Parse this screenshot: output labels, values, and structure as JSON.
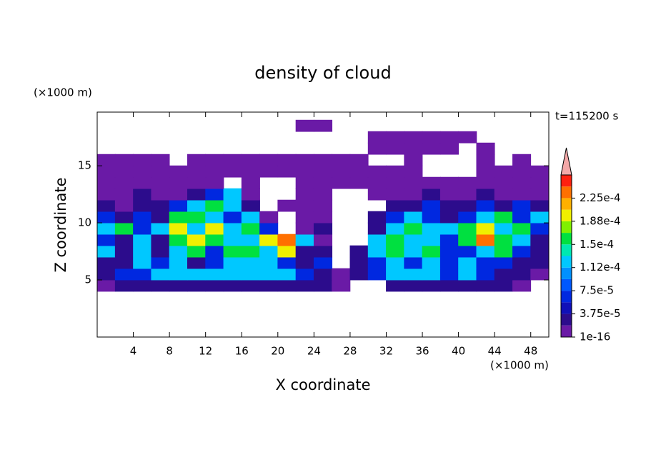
{
  "chart_data": {
    "type": "contour",
    "title": "density of cloud",
    "xlabel": "X coordinate",
    "ylabel": "Z coordinate",
    "x_unit": "(×1000 m)",
    "y_unit": "(×1000 m)",
    "annotation": "t=115200 s",
    "xlim": [
      0,
      50
    ],
    "ylim": [
      0,
      19.7
    ],
    "xticks": [
      4,
      8,
      12,
      16,
      20,
      24,
      28,
      32,
      36,
      40,
      44,
      48
    ],
    "yticks": [
      5,
      10,
      15
    ],
    "x": [
      1,
      3,
      5,
      7,
      9,
      11,
      13,
      15,
      17,
      19,
      21,
      23,
      25,
      27,
      29,
      31,
      33,
      35,
      37,
      39,
      41,
      43,
      45,
      47,
      49
    ],
    "z": [
      4.5,
      5.5,
      6.5,
      7.5,
      8.5,
      9.5,
      10.5,
      11.5,
      12.5,
      13.5,
      14.5,
      15.5,
      16.5,
      17.5,
      18.5
    ],
    "values": [
      [
        1e-05,
        3e-05,
        3e-05,
        3e-05,
        3e-05,
        3e-05,
        3e-05,
        3e-05,
        3e-05,
        3e-05,
        3e-05,
        3e-05,
        3e-05,
        1e-05,
        null,
        null,
        3e-05,
        3e-05,
        3e-05,
        3e-05,
        3e-05,
        3e-05,
        3e-05,
        1e-05,
        null
      ],
      [
        3e-05,
        6e-05,
        6e-05,
        0.00012,
        0.00012,
        0.00012,
        0.00012,
        0.00012,
        0.00012,
        0.00012,
        0.00012,
        6e-05,
        3e-05,
        1e-05,
        3e-05,
        6e-05,
        0.00012,
        0.00012,
        0.00012,
        6e-05,
        0.00012,
        6e-05,
        3e-05,
        3e-05,
        1e-05
      ],
      [
        3e-05,
        3e-05,
        0.00012,
        6e-05,
        0.00012,
        3e-05,
        6e-05,
        0.00012,
        0.00012,
        0.00012,
        6e-05,
        3e-05,
        6e-05,
        null,
        3e-05,
        6e-05,
        0.00012,
        6e-05,
        0.00012,
        6e-05,
        0.00012,
        6e-05,
        6e-05,
        3e-05,
        3e-05
      ],
      [
        0.00012,
        3e-05,
        0.00012,
        3e-05,
        0.00012,
        0.00016,
        6e-05,
        0.00016,
        0.00016,
        0.00012,
        0.000195,
        3e-05,
        3e-05,
        null,
        3e-05,
        0.00012,
        0.00016,
        0.00012,
        0.00016,
        6e-05,
        6e-05,
        0.00012,
        0.00016,
        6e-05,
        3e-05
      ],
      [
        6e-05,
        3e-05,
        0.00012,
        3e-05,
        0.00016,
        0.000195,
        0.00016,
        0.00012,
        0.00012,
        0.000195,
        0.00023,
        0.00012,
        1e-05,
        null,
        null,
        0.00012,
        0.00016,
        0.00012,
        0.00012,
        6e-05,
        0.00016,
        0.00023,
        0.00016,
        0.00012,
        3e-05
      ],
      [
        0.00012,
        0.00016,
        6e-05,
        0.00012,
        0.000195,
        0.00012,
        0.000195,
        0.00012,
        0.00016,
        6e-05,
        null,
        1e-05,
        3e-05,
        null,
        null,
        3e-05,
        0.00012,
        0.00016,
        0.00012,
        0.00012,
        0.00016,
        0.000195,
        0.00012,
        0.00016,
        6e-05
      ],
      [
        6e-05,
        3e-05,
        6e-05,
        3e-05,
        0.00016,
        0.00016,
        0.00012,
        6e-05,
        0.00012,
        1e-05,
        null,
        1e-05,
        1e-05,
        null,
        null,
        3e-05,
        6e-05,
        0.00012,
        6e-05,
        3e-05,
        6e-05,
        0.00012,
        0.00016,
        6e-05,
        0.00012
      ],
      [
        3e-05,
        1e-05,
        3e-05,
        3e-05,
        6e-05,
        0.00012,
        0.00016,
        0.00012,
        3e-05,
        null,
        1e-05,
        1e-05,
        1e-05,
        null,
        null,
        null,
        3e-05,
        3e-05,
        6e-05,
        3e-05,
        3e-05,
        6e-05,
        3e-05,
        6e-05,
        3e-05
      ],
      [
        1e-05,
        1e-05,
        3e-05,
        1e-05,
        1e-05,
        3e-05,
        6e-05,
        0.00012,
        1e-05,
        null,
        null,
        1e-05,
        1e-05,
        null,
        null,
        1e-05,
        1e-05,
        1e-05,
        3e-05,
        1e-05,
        1e-05,
        3e-05,
        1e-05,
        1e-05,
        1e-05
      ],
      [
        1e-05,
        1e-05,
        1e-05,
        1e-05,
        1e-05,
        1e-05,
        1e-05,
        null,
        1e-05,
        null,
        null,
        1e-05,
        1e-05,
        1e-05,
        1e-05,
        1e-05,
        1e-05,
        1e-05,
        1e-05,
        1e-05,
        1e-05,
        1e-05,
        1e-05,
        1e-05,
        1e-05
      ],
      [
        1e-05,
        1e-05,
        1e-05,
        1e-05,
        1e-05,
        1e-05,
        1e-05,
        1e-05,
        1e-05,
        1e-05,
        1e-05,
        1e-05,
        1e-05,
        1e-05,
        1e-05,
        1e-05,
        1e-05,
        1e-05,
        null,
        null,
        null,
        1e-05,
        1e-05,
        1e-05,
        1e-05
      ],
      [
        1e-05,
        1e-05,
        1e-05,
        1e-05,
        null,
        1e-05,
        1e-05,
        1e-05,
        1e-05,
        1e-05,
        1e-05,
        1e-05,
        1e-05,
        1e-05,
        1e-05,
        null,
        null,
        1e-05,
        null,
        null,
        null,
        1e-05,
        null,
        1e-05,
        null
      ],
      [
        null,
        null,
        null,
        null,
        null,
        null,
        null,
        null,
        null,
        null,
        null,
        null,
        null,
        null,
        null,
        1e-05,
        1e-05,
        1e-05,
        1e-05,
        1e-05,
        null,
        1e-05,
        null,
        null,
        null
      ],
      [
        null,
        null,
        null,
        null,
        null,
        null,
        null,
        null,
        null,
        null,
        null,
        null,
        null,
        null,
        null,
        1e-05,
        1e-05,
        1e-05,
        1e-05,
        1e-05,
        1e-05,
        null,
        null,
        null,
        null
      ],
      [
        null,
        null,
        null,
        null,
        null,
        null,
        null,
        null,
        null,
        null,
        null,
        1e-05,
        1e-05,
        null,
        null,
        null,
        null,
        null,
        null,
        null,
        null,
        null,
        null,
        null,
        null
      ]
    ],
    "levels": [
      1e-16,
      1.875e-05,
      3.75e-05,
      5.625e-05,
      7.5e-05,
      9.375e-05,
      0.0001125,
      0.00013125,
      0.00015,
      0.00016875,
      0.0001875,
      0.00020625,
      0.000225,
      0.00024375,
      0.0002625
    ],
    "colors": [
      "#6a1aa6",
      "#2c0c8c",
      "#1010b8",
      "#0028e0",
      "#0058ff",
      "#0090ff",
      "#00c8ff",
      "#00e8b0",
      "#00e040",
      "#80f000",
      "#f0f000",
      "#ffb000",
      "#ff7000",
      "#ff2010"
    ],
    "extend_color": "#f4a8a8",
    "colorbar_ticks": [
      {
        "value": 1e-16,
        "label": "1e-16"
      },
      {
        "value": 3.75e-05,
        "label": "3.75e-5"
      },
      {
        "value": 7.5e-05,
        "label": "7.5e-5"
      },
      {
        "value": 0.0001125,
        "label": "1.12e-4"
      },
      {
        "value": 0.00015,
        "label": "1.5e-4"
      },
      {
        "value": 0.0001875,
        "label": "1.88e-4"
      },
      {
        "value": 0.000225,
        "label": "2.25e-4"
      }
    ]
  }
}
